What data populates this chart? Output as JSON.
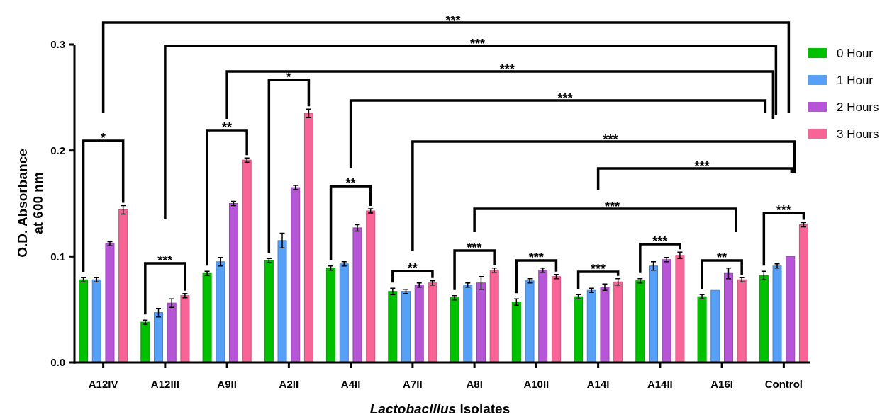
{
  "chart_data": {
    "type": "bar",
    "xlabel": "Lactobacillus isolates",
    "ylabel": "O.D. Absorbance\nat 600 nm",
    "categories": [
      "A12IV",
      "A12III",
      "A9II",
      "A2II",
      "A4II",
      "A7II",
      "A8I",
      "A10II",
      "A14I",
      "A14II",
      "A16I",
      "Control"
    ],
    "series": [
      {
        "name": "0 Hour",
        "color": "#00c000",
        "values": [
          0.078,
          0.038,
          0.084,
          0.096,
          0.089,
          0.067,
          0.061,
          0.057,
          0.062,
          0.077,
          0.062,
          0.082
        ],
        "errors": [
          0.002,
          0.002,
          0.002,
          0.002,
          0.002,
          0.003,
          0.002,
          0.003,
          0.002,
          0.002,
          0.002,
          0.004
        ]
      },
      {
        "name": "1 Hour",
        "color": "#56a0f8",
        "values": [
          0.078,
          0.047,
          0.095,
          0.115,
          0.093,
          0.067,
          0.073,
          0.077,
          0.068,
          0.091,
          0.068,
          0.091
        ],
        "errors": [
          0.002,
          0.004,
          0.004,
          0.007,
          0.002,
          0.002,
          0.002,
          0.002,
          0.002,
          0.004,
          null,
          0.002
        ]
      },
      {
        "name": "2 Hours",
        "color": "#b656d6",
        "values": [
          0.112,
          0.056,
          0.15,
          0.165,
          0.127,
          0.073,
          0.075,
          0.087,
          0.071,
          0.097,
          0.084,
          0.1
        ],
        "errors": [
          0.002,
          0.004,
          0.002,
          0.002,
          0.003,
          0.002,
          0.006,
          0.002,
          0.003,
          0.002,
          0.005,
          null
        ]
      },
      {
        "name": "3 Hours",
        "color": "#f86496",
        "values": [
          0.144,
          0.063,
          0.191,
          0.235,
          0.143,
          0.075,
          0.087,
          0.081,
          0.076,
          0.101,
          0.078,
          0.13
        ],
        "errors": [
          0.004,
          0.002,
          0.002,
          0.004,
          0.002,
          0.002,
          0.002,
          0.002,
          0.003,
          0.003,
          0.002,
          0.002
        ]
      }
    ],
    "ylim": [
      0,
      0.3
    ],
    "yticks": [
      {
        "value": 0,
        "label": "0.0"
      },
      0.1,
      0.2,
      0.3
    ],
    "legend": "right",
    "grid": false,
    "annotations": [
      "*",
      "***",
      "**",
      "*",
      "**",
      "**",
      "***",
      "***",
      "***",
      "***",
      "**",
      "***",
      "***",
      "***",
      "***",
      "***",
      "***",
      "***",
      "***"
    ]
  }
}
